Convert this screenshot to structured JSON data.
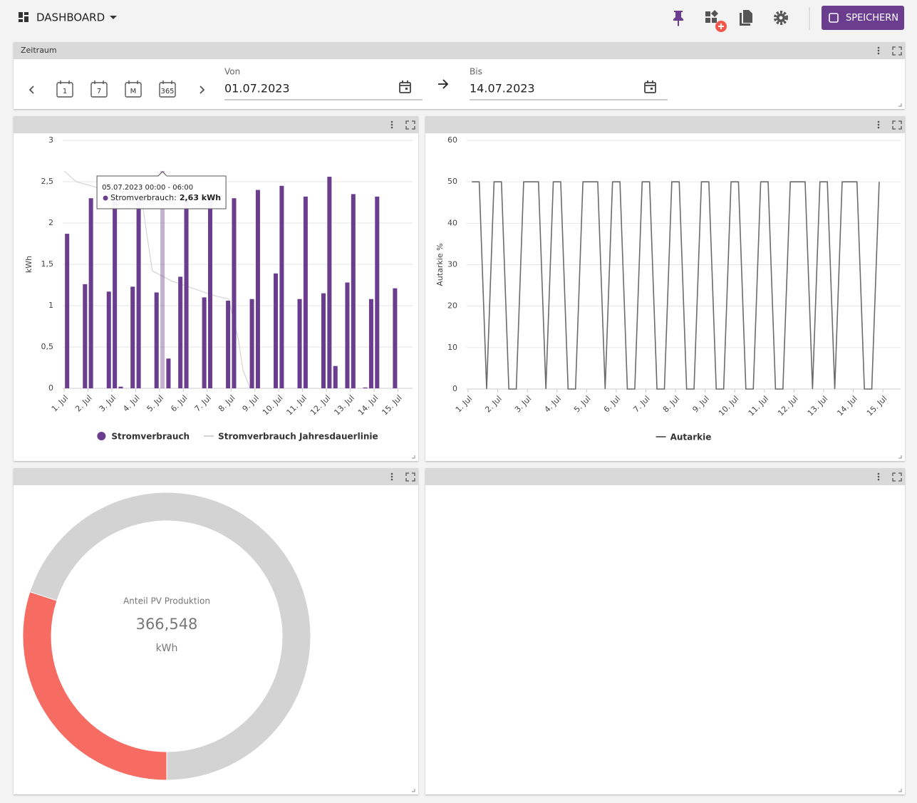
{
  "header": {
    "title": "DASHBOARD",
    "save_button": "SPEICHERN"
  },
  "zeitraum": {
    "title": "Zeitraum",
    "presets": [
      "1",
      "7",
      "M",
      "365"
    ],
    "from_label": "Von",
    "from_value": "01.07.2023",
    "to_label": "Bis",
    "to_value": "14.07.2023"
  },
  "chart_data": [
    {
      "type": "bar",
      "ylabel": "kWh",
      "xlim": [
        0,
        14.55
      ],
      "xticks": [
        {
          "value": 0,
          "label": "1. Jul"
        },
        {
          "value": 1,
          "label": "2. Jul"
        },
        {
          "value": 2,
          "label": "3. Jul"
        },
        {
          "value": 3,
          "label": "4. Jul"
        },
        {
          "value": 4,
          "label": "5. Jul"
        },
        {
          "value": 5,
          "label": "6. Jul"
        },
        {
          "value": 6,
          "label": "7. Jul"
        },
        {
          "value": 7,
          "label": "8. Jul"
        },
        {
          "value": 8,
          "label": "9. Jul"
        },
        {
          "value": 9,
          "label": "10. Jul"
        },
        {
          "value": 10,
          "label": "11. Jul"
        },
        {
          "value": 11,
          "label": "12. Jul"
        },
        {
          "value": 12,
          "label": "13. Jul"
        },
        {
          "value": 13,
          "label": "14. Jul"
        },
        {
          "value": 14,
          "label": "15. Jul"
        }
      ],
      "ylim": [
        0,
        3
      ],
      "yticks": [
        0,
        {
          "value": 0.5,
          "label": "0,5"
        },
        1,
        {
          "value": 1.5,
          "label": "1,5"
        },
        2,
        {
          "value": 2.5,
          "label": "2,5"
        },
        3
      ],
      "grid": true,
      "legend": "bottom",
      "series": [
        {
          "name": "Stromverbrauch",
          "type": "bar",
          "color": "#6a3d8e",
          "x": [
            0.125,
            0.875,
            1.125,
            1.875,
            2.125,
            2.375,
            2.875,
            3.125,
            3.875,
            4.125,
            4.375,
            4.875,
            5.125,
            5.875,
            6.125,
            6.875,
            7.125,
            7.875,
            8.125,
            8.875,
            9.125,
            9.875,
            10.125,
            10.875,
            11.125,
            11.375,
            11.875,
            12.125,
            12.625,
            12.875,
            13.125,
            13.875
          ],
          "values": [
            1.87,
            1.26,
            2.3,
            1.17,
            2.35,
            0.02,
            1.23,
            2.3,
            1.16,
            2.63,
            0.36,
            1.35,
            2.3,
            1.1,
            2.3,
            1.06,
            2.3,
            1.08,
            2.4,
            1.39,
            2.45,
            1.08,
            2.32,
            1.15,
            2.56,
            0.27,
            1.28,
            2.35,
            0.01,
            1.08,
            2.32,
            1.21
          ]
        },
        {
          "name": "Stromverbrauch Jahresdauerlinie",
          "type": "line",
          "color": "#d4d4d4",
          "x": [
            0,
            0.5,
            1.5,
            3.2,
            3.5,
            3.7,
            4.5,
            6.3,
            6.9,
            7.3,
            7.5,
            7.8,
            13.9
          ],
          "values": [
            2.63,
            2.5,
            2.42,
            2.4,
            1.8,
            1.42,
            1.3,
            1.12,
            1.08,
            0.6,
            0.22,
            0,
            0
          ]
        }
      ],
      "tooltip": {
        "title": "05.07.2023 00:00 - 06:00",
        "label": "Stromverbrauch:",
        "value": "2,63 kWh",
        "highlight": 9
      }
    },
    {
      "type": "line",
      "ylabel": "Autarkie %",
      "xlim": [
        0,
        14.55
      ],
      "xticks": [
        {
          "value": 0,
          "label": "1. Jul"
        },
        {
          "value": 1,
          "label": "2. Jul"
        },
        {
          "value": 2,
          "label": "3. Jul"
        },
        {
          "value": 3,
          "label": "4. Jul"
        },
        {
          "value": 4,
          "label": "5. Jul"
        },
        {
          "value": 5,
          "label": "6. Jul"
        },
        {
          "value": 6,
          "label": "7. Jul"
        },
        {
          "value": 7,
          "label": "8. Jul"
        },
        {
          "value": 8,
          "label": "9. Jul"
        },
        {
          "value": 9,
          "label": "10. Jul"
        },
        {
          "value": 10,
          "label": "11. Jul"
        },
        {
          "value": 11,
          "label": "12. Jul"
        },
        {
          "value": 12,
          "label": "13. Jul"
        },
        {
          "value": 13,
          "label": "14. Jul"
        },
        {
          "value": 14,
          "label": "15. Jul"
        }
      ],
      "ylim": [
        0,
        60
      ],
      "yticks": [
        0,
        10,
        20,
        30,
        40,
        50,
        60
      ],
      "grid": true,
      "legend": "bottom",
      "series": [
        {
          "name": "Autarkie",
          "type": "line",
          "color": "#6b6b6b",
          "x": [
            0.125,
            0.375,
            0.625,
            0.875,
            1.125,
            1.375,
            1.625,
            1.875,
            2.125,
            2.375,
            2.625,
            2.875,
            3.125,
            3.375,
            3.625,
            3.875,
            4.125,
            4.375,
            4.625,
            4.875,
            5.125,
            5.375,
            5.625,
            5.875,
            6.125,
            6.375,
            6.625,
            6.875,
            7.125,
            7.375,
            7.625,
            7.875,
            8.125,
            8.375,
            8.625,
            8.875,
            9.125,
            9.375,
            9.625,
            9.875,
            10.125,
            10.375,
            10.625,
            10.875,
            11.125,
            11.375,
            11.625,
            11.875,
            12.125,
            12.375,
            12.625,
            12.875,
            13.125,
            13.375,
            13.625,
            13.875
          ],
          "values": [
            50,
            50,
            0,
            50,
            50,
            0,
            0,
            50,
            50,
            50,
            0,
            50,
            50,
            0,
            0,
            50,
            50,
            50,
            0,
            50,
            50,
            0,
            0,
            50,
            50,
            0,
            0,
            50,
            50,
            0,
            0,
            50,
            50,
            0,
            0,
            50,
            50,
            0,
            0,
            50,
            50,
            0,
            0,
            50,
            50,
            50,
            0,
            50,
            50,
            0,
            50,
            50,
            50,
            0,
            0,
            50
          ]
        }
      ]
    },
    {
      "type": "pie",
      "donut": true,
      "title": "Anteil PV Produktion",
      "total": "366,548",
      "unit": "kWh",
      "values": [
        30,
        70
      ],
      "colors": [
        "#f76c62",
        "#d3d3d3"
      ]
    }
  ]
}
